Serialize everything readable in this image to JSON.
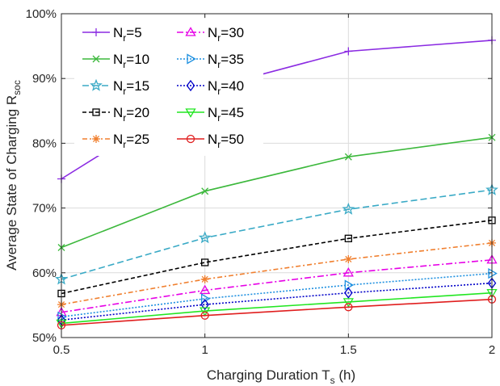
{
  "chart_data": {
    "type": "line",
    "xlabel": "Charging Duration  T",
    "xlabel_sub": "s",
    "xlabel_suffix": " (h)",
    "ylabel": "Average State of Charging  R",
    "ylabel_sub": "soc",
    "x": [
      0.5,
      1,
      1.5,
      2
    ],
    "xticks": [
      "0.5",
      "1",
      "1.5",
      "2"
    ],
    "xlim": [
      0.5,
      2
    ],
    "ylim": [
      50,
      100
    ],
    "yticks": [
      "50%",
      "60%",
      "70%",
      "80%",
      "90%",
      "100%"
    ],
    "ytick_values": [
      50,
      60,
      70,
      80,
      90,
      100
    ],
    "grid": true,
    "legend_position": "top-left",
    "series": [
      {
        "name": "N",
        "name_sub": "r",
        "name_suffix": "=5",
        "values": [
          74.5,
          88.3,
          94.2,
          95.9
        ],
        "color": "#8B2BE2",
        "dash": "",
        "marker": "plus"
      },
      {
        "name": "N",
        "name_sub": "r",
        "name_suffix": "=10",
        "values": [
          63.9,
          72.6,
          77.9,
          80.9
        ],
        "color": "#3CB83C",
        "dash": "",
        "marker": "x"
      },
      {
        "name": "N",
        "name_sub": "r",
        "name_suffix": "=15",
        "values": [
          59.0,
          65.4,
          69.8,
          72.8
        ],
        "color": "#3AAAC6",
        "dash": "8,4",
        "marker": "star"
      },
      {
        "name": "N",
        "name_sub": "r",
        "name_suffix": "=20",
        "values": [
          56.8,
          61.6,
          65.3,
          68.1
        ],
        "color": "#000000",
        "dash": "5,3",
        "marker": "square"
      },
      {
        "name": "N",
        "name_sub": "r",
        "name_suffix": "=25",
        "values": [
          55.1,
          59.0,
          62.1,
          64.6
        ],
        "color": "#F07F2E",
        "dash": "6,3,2,3",
        "marker": "asterisk"
      },
      {
        "name": "N",
        "name_sub": "r",
        "name_suffix": "=30",
        "values": [
          53.9,
          57.3,
          60.0,
          62.0
        ],
        "color": "#E600E6",
        "dash": "8,3,2,3",
        "marker": "triangle-up"
      },
      {
        "name": "N",
        "name_sub": "r",
        "name_suffix": "=35",
        "values": [
          53.2,
          56.0,
          58.1,
          59.9
        ],
        "color": "#1E90E0",
        "dash": "2,2",
        "marker": "triangle-right"
      },
      {
        "name": "N",
        "name_sub": "r",
        "name_suffix": "=40",
        "values": [
          52.7,
          55.1,
          56.9,
          58.4
        ],
        "color": "#0000C8",
        "dash": "2,2",
        "marker": "diamond"
      },
      {
        "name": "N",
        "name_sub": "r",
        "name_suffix": "=45",
        "values": [
          52.2,
          54.1,
          55.5,
          56.9
        ],
        "color": "#22E622",
        "dash": "",
        "marker": "triangle-down"
      },
      {
        "name": "N",
        "name_sub": "r",
        "name_suffix": "=50",
        "values": [
          51.9,
          53.4,
          54.7,
          55.9
        ],
        "color": "#E01E1E",
        "dash": "",
        "marker": "circle"
      }
    ]
  }
}
